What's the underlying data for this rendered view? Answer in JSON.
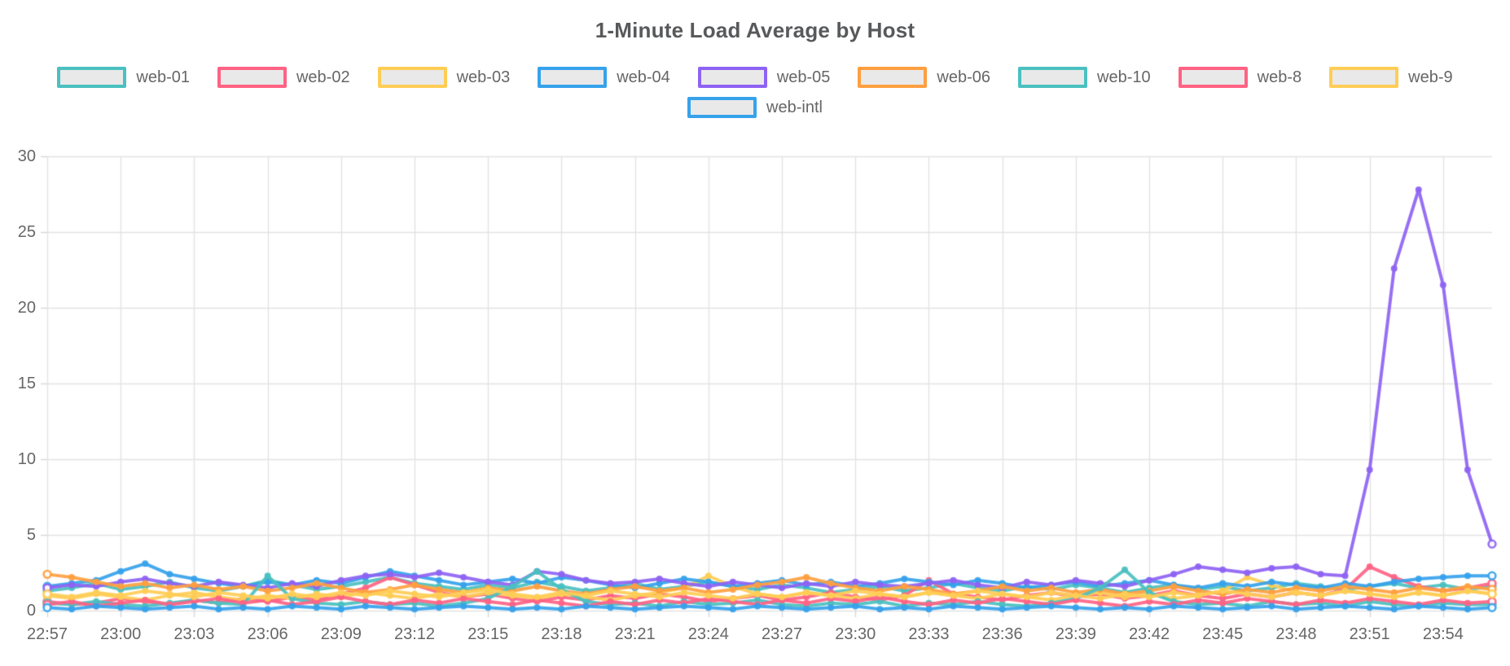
{
  "styles": {
    "grid_color": "#e3e3e3",
    "tick_mark_color": "#d6d6d6",
    "axis_text_color": "#666666",
    "title_color": "#58595b",
    "legend_fill": "#e9e9e9",
    "background": "#ffffff"
  },
  "chart_data": {
    "type": "line",
    "title": "1-Minute Load Average by Host",
    "xlabel": "",
    "ylabel": "",
    "ylim": [
      0,
      30
    ],
    "y_ticks": [
      0,
      5,
      10,
      15,
      20,
      25,
      30
    ],
    "grid": true,
    "legend_position": "top",
    "x_tick_every": 3,
    "x": [
      "22:57",
      "22:58",
      "22:59",
      "23:00",
      "23:01",
      "23:02",
      "23:03",
      "23:04",
      "23:05",
      "23:06",
      "23:07",
      "23:08",
      "23:09",
      "23:10",
      "23:11",
      "23:12",
      "23:13",
      "23:14",
      "23:15",
      "23:16",
      "23:17",
      "23:18",
      "23:19",
      "23:20",
      "23:21",
      "23:22",
      "23:23",
      "23:24",
      "23:25",
      "23:26",
      "23:27",
      "23:28",
      "23:29",
      "23:30",
      "23:31",
      "23:32",
      "23:33",
      "23:34",
      "23:35",
      "23:36",
      "23:37",
      "23:38",
      "23:39",
      "23:40",
      "23:41",
      "23:42",
      "23:43",
      "23:44",
      "23:45",
      "23:46",
      "23:47",
      "23:48",
      "23:49",
      "23:50",
      "23:51",
      "23:52",
      "23:53",
      "23:54",
      "23:55",
      "23:56"
    ],
    "series": [
      {
        "name": "web-01",
        "color": "#4BC0C0",
        "values": [
          1.3,
          1.5,
          1.8,
          1.4,
          1.6,
          1.9,
          1.5,
          1.3,
          1.6,
          2.0,
          1.7,
          1.4,
          1.6,
          1.9,
          2.2,
          1.8,
          1.6,
          1.4,
          1.7,
          1.5,
          1.9,
          1.6,
          1.3,
          1.5,
          1.8,
          1.4,
          1.6,
          1.9,
          1.6,
          1.4,
          1.7,
          1.5,
          1.2,
          1.4,
          1.6,
          1.3,
          1.5,
          1.8,
          1.5,
          1.3,
          1.6,
          1.4,
          1.7,
          1.5,
          1.2,
          1.5,
          1.7,
          1.4,
          1.6,
          1.3,
          1.5,
          1.8,
          1.6,
          1.4,
          1.6,
          1.8,
          1.5,
          1.7,
          1.4,
          1.6
        ]
      },
      {
        "name": "web-02",
        "color": "#FF6384",
        "values": [
          0.6,
          0.4,
          0.5,
          0.8,
          0.6,
          0.4,
          0.7,
          0.5,
          0.8,
          0.6,
          0.9,
          0.7,
          1.1,
          1.5,
          2.2,
          1.7,
          1.2,
          0.9,
          1.1,
          0.8,
          0.6,
          0.9,
          0.7,
          1.0,
          0.8,
          1.1,
          0.9,
          0.6,
          0.8,
          1.0,
          0.7,
          0.9,
          1.2,
          0.9,
          0.7,
          1.0,
          2.0,
          1.1,
          0.9,
          0.7,
          1.0,
          1.2,
          0.9,
          1.1,
          0.8,
          1.0,
          1.3,
          1.0,
          0.8,
          1.1,
          0.9,
          1.2,
          1.0,
          1.4,
          2.9,
          2.2,
          1.6,
          1.3,
          1.5,
          1.8
        ]
      },
      {
        "name": "web-03",
        "color": "#FFCD56",
        "values": [
          1.0,
          0.8,
          1.1,
          0.9,
          0.7,
          1.0,
          1.2,
          0.9,
          0.7,
          1.0,
          0.8,
          1.1,
          0.9,
          1.2,
          1.0,
          0.8,
          1.1,
          0.9,
          1.2,
          1.0,
          0.8,
          1.1,
          0.9,
          0.7,
          1.0,
          1.2,
          1.5,
          2.3,
          1.6,
          1.1,
          0.9,
          1.2,
          1.0,
          0.8,
          1.1,
          0.9,
          1.2,
          1.0,
          0.8,
          1.1,
          0.9,
          0.7,
          1.0,
          1.2,
          0.9,
          1.1,
          0.8,
          1.0,
          1.3,
          2.2,
          1.7,
          1.2,
          1.0,
          1.3,
          1.1,
          0.9,
          1.2,
          1.0,
          1.3,
          1.1
        ]
      },
      {
        "name": "web-04",
        "color": "#36A2EB",
        "values": [
          1.6,
          1.8,
          2.0,
          2.6,
          3.1,
          2.4,
          2.1,
          1.8,
          1.6,
          1.9,
          1.7,
          2.0,
          1.8,
          2.2,
          2.6,
          2.3,
          2.0,
          1.7,
          1.9,
          2.1,
          1.8,
          2.2,
          2.0,
          1.7,
          1.5,
          1.8,
          2.1,
          1.9,
          1.6,
          1.8,
          2.0,
          1.7,
          1.9,
          1.6,
          1.8,
          2.1,
          1.9,
          1.7,
          2.0,
          1.8,
          1.5,
          1.7,
          1.9,
          1.6,
          1.8,
          2.0,
          1.7,
          1.5,
          1.8,
          1.6,
          1.9,
          1.7,
          1.5,
          1.8,
          1.6,
          1.9,
          2.1,
          2.2,
          2.3,
          2.3
        ]
      },
      {
        "name": "web-05",
        "color": "#8E63F3",
        "values": [
          1.5,
          1.7,
          1.6,
          1.9,
          2.1,
          1.8,
          1.6,
          1.9,
          1.7,
          1.5,
          1.8,
          1.6,
          2.0,
          2.3,
          2.4,
          2.2,
          2.5,
          2.2,
          1.9,
          1.7,
          2.6,
          2.4,
          2.0,
          1.8,
          1.9,
          2.1,
          1.8,
          1.6,
          1.9,
          1.7,
          1.5,
          1.8,
          1.6,
          1.9,
          1.7,
          1.6,
          1.8,
          2.0,
          1.7,
          1.5,
          1.9,
          1.7,
          2.0,
          1.8,
          1.6,
          2.0,
          2.4,
          2.9,
          2.7,
          2.5,
          2.8,
          2.9,
          2.4,
          2.3,
          9.3,
          22.6,
          27.8,
          21.5,
          9.3,
          4.4
        ]
      },
      {
        "name": "web-06",
        "color": "#FF9F40",
        "values": [
          2.4,
          2.2,
          1.9,
          1.6,
          1.8,
          1.5,
          1.7,
          1.4,
          1.6,
          1.3,
          1.5,
          1.8,
          1.5,
          1.2,
          1.4,
          1.7,
          1.4,
          1.2,
          1.5,
          1.3,
          1.6,
          1.3,
          1.1,
          1.4,
          1.6,
          1.3,
          1.5,
          1.2,
          1.4,
          1.7,
          1.9,
          2.2,
          1.8,
          1.5,
          1.3,
          1.6,
          1.4,
          1.1,
          1.3,
          1.6,
          1.3,
          1.5,
          1.2,
          1.4,
          1.1,
          1.3,
          1.6,
          1.3,
          1.1,
          1.4,
          1.2,
          1.5,
          1.3,
          1.6,
          1.4,
          1.2,
          1.5,
          1.3,
          1.6,
          1.4
        ]
      },
      {
        "name": "web-10",
        "color": "#4BC0C0",
        "values": [
          0.5,
          0.4,
          0.6,
          0.4,
          0.3,
          0.5,
          0.7,
          0.5,
          0.4,
          2.3,
          0.8,
          0.5,
          0.4,
          0.6,
          0.4,
          0.5,
          0.3,
          0.5,
          0.8,
          1.6,
          2.6,
          1.4,
          0.6,
          0.4,
          0.5,
          0.3,
          0.6,
          0.4,
          0.5,
          0.7,
          0.4,
          0.3,
          0.5,
          0.4,
          0.6,
          0.3,
          0.5,
          0.4,
          0.6,
          0.4,
          0.3,
          0.5,
          0.8,
          1.5,
          2.7,
          1.2,
          0.6,
          0.4,
          0.5,
          0.3,
          0.6,
          0.4,
          0.5,
          0.3,
          0.6,
          0.4,
          0.3,
          0.5,
          0.4,
          0.4
        ]
      },
      {
        "name": "web-8",
        "color": "#FF6384",
        "values": [
          0.4,
          0.6,
          0.3,
          0.5,
          0.7,
          0.4,
          0.6,
          0.8,
          0.5,
          0.7,
          0.4,
          0.6,
          0.9,
          0.6,
          0.4,
          0.7,
          0.5,
          0.8,
          0.6,
          0.4,
          0.7,
          0.5,
          0.3,
          0.6,
          0.4,
          0.7,
          0.5,
          0.8,
          0.6,
          0.4,
          0.7,
          0.5,
          0.8,
          0.6,
          0.9,
          0.6,
          0.4,
          0.7,
          0.5,
          0.8,
          0.6,
          0.4,
          0.7,
          0.5,
          0.3,
          0.6,
          0.4,
          0.7,
          0.5,
          0.8,
          0.6,
          0.4,
          0.7,
          0.5,
          0.8,
          0.6,
          0.4,
          0.7,
          0.5,
          0.6
        ]
      },
      {
        "name": "web-9",
        "color": "#FFCD56",
        "values": [
          1.1,
          0.9,
          1.2,
          1.0,
          1.3,
          1.1,
          0.9,
          1.2,
          1.0,
          0.8,
          1.1,
          0.9,
          1.2,
          1.0,
          1.3,
          1.1,
          0.9,
          1.2,
          1.4,
          1.1,
          0.9,
          1.2,
          1.0,
          1.3,
          1.1,
          0.9,
          1.2,
          1.0,
          0.8,
          1.1,
          0.9,
          1.2,
          1.0,
          1.3,
          1.1,
          0.9,
          1.2,
          1.0,
          1.3,
          1.1,
          0.9,
          1.2,
          1.0,
          0.8,
          1.1,
          0.9,
          1.2,
          1.0,
          1.3,
          1.1,
          0.9,
          1.2,
          1.0,
          1.3,
          1.1,
          0.9,
          1.2,
          1.0,
          1.3,
          1.1
        ]
      },
      {
        "name": "web-intl",
        "color": "#36A2EB",
        "values": [
          0.2,
          0.1,
          0.3,
          0.2,
          0.1,
          0.2,
          0.3,
          0.1,
          0.2,
          0.1,
          0.3,
          0.2,
          0.1,
          0.3,
          0.2,
          0.1,
          0.2,
          0.3,
          0.2,
          0.1,
          0.2,
          0.1,
          0.3,
          0.2,
          0.1,
          0.2,
          0.3,
          0.2,
          0.1,
          0.3,
          0.2,
          0.1,
          0.2,
          0.3,
          0.1,
          0.2,
          0.1,
          0.3,
          0.2,
          0.1,
          0.2,
          0.3,
          0.2,
          0.1,
          0.2,
          0.1,
          0.3,
          0.2,
          0.1,
          0.2,
          0.3,
          0.1,
          0.2,
          0.3,
          0.2,
          0.1,
          0.3,
          0.2,
          0.1,
          0.2
        ]
      }
    ]
  }
}
